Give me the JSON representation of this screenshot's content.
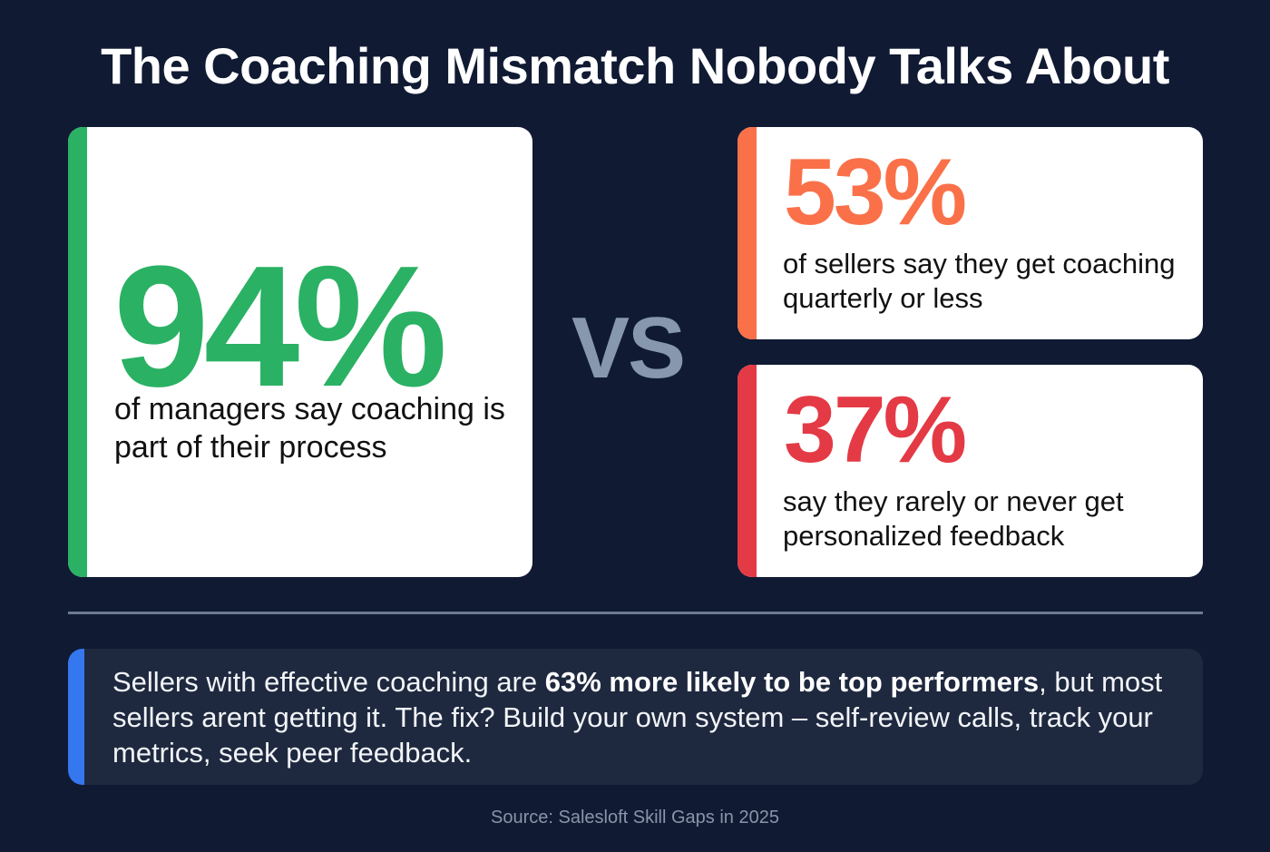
{
  "title": "The Coaching Mismatch Nobody Talks About",
  "colors": {
    "background": "#101a33",
    "green": "#2ab164",
    "orange": "#fa7149",
    "red": "#e43a45",
    "blue": "#3577ee",
    "vs": "#8797ad"
  },
  "main_stat": {
    "value": "94%",
    "description": "of managers say coaching is part of their process"
  },
  "vs_label": "VS",
  "side_stats": [
    {
      "value": "53%",
      "description": "of sellers say they get coaching quarterly or less"
    },
    {
      "value": "37%",
      "description": "say they rarely or never get personalized feedback"
    }
  ],
  "callout": {
    "prefix": "Sellers with effective coaching are ",
    "highlight": "63% more likely to be top performers",
    "suffix": ", but most sellers arent getting it. The fix? Build your own system – self-review calls, track your metrics, seek peer feedback."
  },
  "source": "Source: Salesloft Skill Gaps in 2025"
}
